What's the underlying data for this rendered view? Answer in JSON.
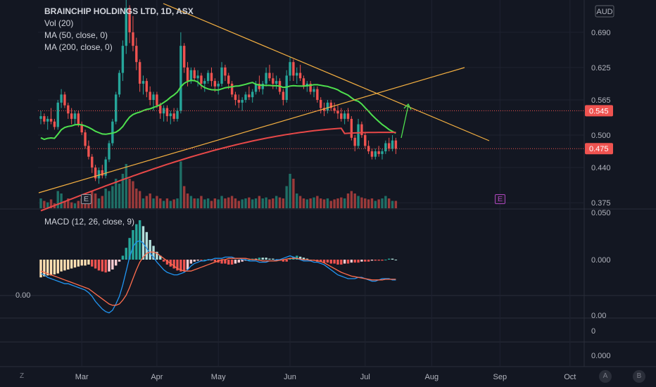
{
  "header": {
    "symbol_line": "BRAINCHIP HOLDINGS LTD, 1D, ASX",
    "indicators": [
      "Vol (20)",
      "MA (50, close, 0)",
      "MA (200, close, 0)"
    ],
    "currency": "AUD"
  },
  "macd_pane": {
    "label": "MACD (12, 26, close, 9)"
  },
  "left_marker": "0.00",
  "corner_buttons": {
    "left": "Z",
    "a": "A",
    "b": "B"
  },
  "earnings_markers": [
    "E",
    "E"
  ],
  "colors": {
    "background": "#131722",
    "up": "#26a69a",
    "down": "#ef5350",
    "ma50": "#4ee04e",
    "ma200": "#e84848",
    "trend": "#f5b041",
    "macd": "#2196f3",
    "signal": "#ff6d4d",
    "earnings_purple": "#ab47bc"
  },
  "chart_data": {
    "type": "candlestick",
    "title": "BRAINCHIP HOLDINGS LTD, 1D, ASX",
    "price_axis": {
      "ticks": [
        "0.690",
        "0.625",
        "0.565",
        "0.500",
        "0.440",
        "0.375"
      ],
      "ylim": [
        0.34,
        0.76
      ],
      "current_price": "0.545",
      "last_close": "0.475"
    },
    "macd_axis": {
      "ticks": [
        "0.050",
        "0.000",
        "0.00",
        "0",
        "0.000"
      ]
    },
    "x_ticks": [
      "Mar",
      "Apr",
      "May",
      "Jun",
      "Jul",
      "Aug",
      "Sep",
      "Oct"
    ],
    "candles": [
      {
        "date": "Feb-13",
        "o": 0.53,
        "h": 0.545,
        "l": 0.52,
        "c": 0.535
      },
      {
        "date": "Feb-14",
        "o": 0.535,
        "h": 0.54,
        "l": 0.52,
        "c": 0.525
      },
      {
        "date": "Feb-15",
        "o": 0.525,
        "h": 0.535,
        "l": 0.51,
        "c": 0.53
      },
      {
        "date": "Feb-16",
        "o": 0.53,
        "h": 0.55,
        "l": 0.52,
        "c": 0.525
      },
      {
        "date": "Feb-17",
        "o": 0.525,
        "h": 0.53,
        "l": 0.51,
        "c": 0.515
      },
      {
        "date": "Feb-20",
        "o": 0.515,
        "h": 0.565,
        "l": 0.51,
        "c": 0.56
      },
      {
        "date": "Feb-21",
        "o": 0.56,
        "h": 0.585,
        "l": 0.55,
        "c": 0.575
      },
      {
        "date": "Feb-22",
        "o": 0.575,
        "h": 0.58,
        "l": 0.55,
        "c": 0.555
      },
      {
        "date": "Feb-23",
        "o": 0.555,
        "h": 0.56,
        "l": 0.53,
        "c": 0.54
      },
      {
        "date": "Feb-24",
        "o": 0.54,
        "h": 0.55,
        "l": 0.52,
        "c": 0.53
      },
      {
        "date": "Feb-27",
        "o": 0.53,
        "h": 0.545,
        "l": 0.52,
        "c": 0.54
      },
      {
        "date": "Feb-28",
        "o": 0.54,
        "h": 0.545,
        "l": 0.515,
        "c": 0.52
      },
      {
        "date": "Mar-01",
        "o": 0.52,
        "h": 0.525,
        "l": 0.5,
        "c": 0.505
      },
      {
        "date": "Mar-02",
        "o": 0.505,
        "h": 0.51,
        "l": 0.475,
        "c": 0.48
      },
      {
        "date": "Mar-03",
        "o": 0.48,
        "h": 0.49,
        "l": 0.455,
        "c": 0.46
      },
      {
        "date": "Mar-06",
        "o": 0.46,
        "h": 0.465,
        "l": 0.43,
        "c": 0.44
      },
      {
        "date": "Mar-07",
        "o": 0.44,
        "h": 0.445,
        "l": 0.415,
        "c": 0.42
      },
      {
        "date": "Mar-08",
        "o": 0.42,
        "h": 0.44,
        "l": 0.41,
        "c": 0.435
      },
      {
        "date": "Mar-09",
        "o": 0.435,
        "h": 0.445,
        "l": 0.42,
        "c": 0.425
      },
      {
        "date": "Mar-10",
        "o": 0.425,
        "h": 0.46,
        "l": 0.42,
        "c": 0.455
      },
      {
        "date": "Mar-13",
        "o": 0.455,
        "h": 0.49,
        "l": 0.45,
        "c": 0.485
      },
      {
        "date": "Mar-14",
        "o": 0.485,
        "h": 0.53,
        "l": 0.48,
        "c": 0.525
      },
      {
        "date": "Mar-15",
        "o": 0.525,
        "h": 0.58,
        "l": 0.52,
        "c": 0.575
      },
      {
        "date": "Mar-16",
        "o": 0.575,
        "h": 0.62,
        "l": 0.57,
        "c": 0.615
      },
      {
        "date": "Mar-17",
        "o": 0.615,
        "h": 0.675,
        "l": 0.6,
        "c": 0.665
      },
      {
        "date": "Mar-20",
        "o": 0.665,
        "h": 0.76,
        "l": 0.65,
        "c": 0.735
      },
      {
        "date": "Mar-21",
        "o": 0.735,
        "h": 0.74,
        "l": 0.67,
        "c": 0.69
      },
      {
        "date": "Mar-22",
        "o": 0.69,
        "h": 0.72,
        "l": 0.655,
        "c": 0.665
      },
      {
        "date": "Mar-23",
        "o": 0.665,
        "h": 0.68,
        "l": 0.62,
        "c": 0.635
      },
      {
        "date": "Mar-24",
        "o": 0.635,
        "h": 0.64,
        "l": 0.58,
        "c": 0.595
      },
      {
        "date": "Mar-27",
        "o": 0.595,
        "h": 0.61,
        "l": 0.575,
        "c": 0.6
      },
      {
        "date": "Mar-28",
        "o": 0.6,
        "h": 0.605,
        "l": 0.57,
        "c": 0.58
      },
      {
        "date": "Mar-29",
        "o": 0.58,
        "h": 0.59,
        "l": 0.555,
        "c": 0.565
      },
      {
        "date": "Mar-30",
        "o": 0.565,
        "h": 0.58,
        "l": 0.545,
        "c": 0.575
      },
      {
        "date": "Mar-31",
        "o": 0.575,
        "h": 0.58,
        "l": 0.55,
        "c": 0.555
      },
      {
        "date": "Apr-03",
        "o": 0.555,
        "h": 0.56,
        "l": 0.53,
        "c": 0.54
      },
      {
        "date": "Apr-04",
        "o": 0.54,
        "h": 0.555,
        "l": 0.525,
        "c": 0.55
      },
      {
        "date": "Apr-05",
        "o": 0.55,
        "h": 0.555,
        "l": 0.525,
        "c": 0.535
      },
      {
        "date": "Apr-06",
        "o": 0.535,
        "h": 0.545,
        "l": 0.52,
        "c": 0.54
      },
      {
        "date": "Apr-11",
        "o": 0.54,
        "h": 0.55,
        "l": 0.525,
        "c": 0.53
      },
      {
        "date": "Apr-12",
        "o": 0.53,
        "h": 0.55,
        "l": 0.525,
        "c": 0.545
      },
      {
        "date": "Apr-13",
        "o": 0.545,
        "h": 0.69,
        "l": 0.54,
        "c": 0.665
      },
      {
        "date": "Apr-14",
        "o": 0.665,
        "h": 0.67,
        "l": 0.615,
        "c": 0.625
      },
      {
        "date": "Apr-17",
        "o": 0.625,
        "h": 0.635,
        "l": 0.59,
        "c": 0.6
      },
      {
        "date": "Apr-18",
        "o": 0.6,
        "h": 0.625,
        "l": 0.595,
        "c": 0.62
      },
      {
        "date": "Apr-19",
        "o": 0.62,
        "h": 0.625,
        "l": 0.6,
        "c": 0.605
      },
      {
        "date": "Apr-20",
        "o": 0.605,
        "h": 0.62,
        "l": 0.59,
        "c": 0.61
      },
      {
        "date": "Apr-21",
        "o": 0.61,
        "h": 0.615,
        "l": 0.585,
        "c": 0.595
      },
      {
        "date": "Apr-24",
        "o": 0.595,
        "h": 0.605,
        "l": 0.58,
        "c": 0.6
      },
      {
        "date": "Apr-26",
        "o": 0.6,
        "h": 0.62,
        "l": 0.595,
        "c": 0.615
      },
      {
        "date": "Apr-27",
        "o": 0.615,
        "h": 0.625,
        "l": 0.59,
        "c": 0.6
      },
      {
        "date": "Apr-28",
        "o": 0.6,
        "h": 0.605,
        "l": 0.58,
        "c": 0.59
      },
      {
        "date": "May-01",
        "o": 0.59,
        "h": 0.6,
        "l": 0.575,
        "c": 0.595
      },
      {
        "date": "May-02",
        "o": 0.595,
        "h": 0.635,
        "l": 0.59,
        "c": 0.625
      },
      {
        "date": "May-03",
        "o": 0.625,
        "h": 0.63,
        "l": 0.6,
        "c": 0.61
      },
      {
        "date": "May-04",
        "o": 0.61,
        "h": 0.615,
        "l": 0.585,
        "c": 0.595
      },
      {
        "date": "May-05",
        "o": 0.595,
        "h": 0.6,
        "l": 0.57,
        "c": 0.575
      },
      {
        "date": "May-08",
        "o": 0.575,
        "h": 0.58,
        "l": 0.555,
        "c": 0.565
      },
      {
        "date": "May-09",
        "o": 0.565,
        "h": 0.575,
        "l": 0.55,
        "c": 0.56
      },
      {
        "date": "May-10",
        "o": 0.56,
        "h": 0.57,
        "l": 0.545,
        "c": 0.565
      },
      {
        "date": "May-11",
        "o": 0.565,
        "h": 0.58,
        "l": 0.56,
        "c": 0.575
      },
      {
        "date": "May-12",
        "o": 0.575,
        "h": 0.59,
        "l": 0.565,
        "c": 0.57
      },
      {
        "date": "May-15",
        "o": 0.57,
        "h": 0.585,
        "l": 0.56,
        "c": 0.58
      },
      {
        "date": "May-16",
        "o": 0.58,
        "h": 0.6,
        "l": 0.575,
        "c": 0.595
      },
      {
        "date": "May-17",
        "o": 0.595,
        "h": 0.61,
        "l": 0.58,
        "c": 0.585
      },
      {
        "date": "May-18",
        "o": 0.585,
        "h": 0.6,
        "l": 0.575,
        "c": 0.595
      },
      {
        "date": "May-19",
        "o": 0.595,
        "h": 0.625,
        "l": 0.59,
        "c": 0.615
      },
      {
        "date": "May-22",
        "o": 0.615,
        "h": 0.63,
        "l": 0.6,
        "c": 0.605
      },
      {
        "date": "May-23",
        "o": 0.605,
        "h": 0.615,
        "l": 0.585,
        "c": 0.595
      },
      {
        "date": "May-24",
        "o": 0.595,
        "h": 0.61,
        "l": 0.585,
        "c": 0.6
      },
      {
        "date": "May-25",
        "o": 0.6,
        "h": 0.605,
        "l": 0.575,
        "c": 0.58
      },
      {
        "date": "May-26",
        "o": 0.58,
        "h": 0.585,
        "l": 0.555,
        "c": 0.565
      },
      {
        "date": "May-29",
        "o": 0.565,
        "h": 0.62,
        "l": 0.56,
        "c": 0.61
      },
      {
        "date": "May-30",
        "o": 0.61,
        "h": 0.645,
        "l": 0.6,
        "c": 0.635
      },
      {
        "date": "May-31",
        "o": 0.635,
        "h": 0.64,
        "l": 0.6,
        "c": 0.61
      },
      {
        "date": "Jun-01",
        "o": 0.61,
        "h": 0.625,
        "l": 0.595,
        "c": 0.615
      },
      {
        "date": "Jun-02",
        "o": 0.615,
        "h": 0.63,
        "l": 0.6,
        "c": 0.605
      },
      {
        "date": "Jun-05",
        "o": 0.605,
        "h": 0.61,
        "l": 0.585,
        "c": 0.59
      },
      {
        "date": "Jun-06",
        "o": 0.59,
        "h": 0.6,
        "l": 0.58,
        "c": 0.595
      },
      {
        "date": "Jun-07",
        "o": 0.595,
        "h": 0.6,
        "l": 0.575,
        "c": 0.58
      },
      {
        "date": "Jun-08",
        "o": 0.58,
        "h": 0.59,
        "l": 0.57,
        "c": 0.585
      },
      {
        "date": "Jun-09",
        "o": 0.585,
        "h": 0.59,
        "l": 0.56,
        "c": 0.565
      },
      {
        "date": "Jun-13",
        "o": 0.565,
        "h": 0.57,
        "l": 0.54,
        "c": 0.55
      },
      {
        "date": "Jun-14",
        "o": 0.55,
        "h": 0.56,
        "l": 0.535,
        "c": 0.545
      },
      {
        "date": "Jun-15",
        "o": 0.545,
        "h": 0.565,
        "l": 0.54,
        "c": 0.56
      },
      {
        "date": "Jun-16",
        "o": 0.56,
        "h": 0.565,
        "l": 0.545,
        "c": 0.55
      },
      {
        "date": "Jun-19",
        "o": 0.55,
        "h": 0.56,
        "l": 0.54,
        "c": 0.545
      },
      {
        "date": "Jun-20",
        "o": 0.545,
        "h": 0.555,
        "l": 0.53,
        "c": 0.54
      },
      {
        "date": "Jun-21",
        "o": 0.54,
        "h": 0.55,
        "l": 0.525,
        "c": 0.53
      },
      {
        "date": "Jun-22",
        "o": 0.53,
        "h": 0.545,
        "l": 0.52,
        "c": 0.54
      },
      {
        "date": "Jun-23",
        "o": 0.54,
        "h": 0.55,
        "l": 0.525,
        "c": 0.53
      },
      {
        "date": "Jun-26",
        "o": 0.53,
        "h": 0.535,
        "l": 0.49,
        "c": 0.495
      },
      {
        "date": "Jun-27",
        "o": 0.495,
        "h": 0.5,
        "l": 0.47,
        "c": 0.48
      },
      {
        "date": "Jun-28",
        "o": 0.48,
        "h": 0.53,
        "l": 0.475,
        "c": 0.52
      },
      {
        "date": "Jun-29",
        "o": 0.52,
        "h": 0.525,
        "l": 0.495,
        "c": 0.5
      },
      {
        "date": "Jun-30",
        "o": 0.5,
        "h": 0.505,
        "l": 0.475,
        "c": 0.48
      },
      {
        "date": "Jul-03",
        "o": 0.48,
        "h": 0.49,
        "l": 0.465,
        "c": 0.47
      },
      {
        "date": "Jul-04",
        "o": 0.47,
        "h": 0.475,
        "l": 0.455,
        "c": 0.46
      },
      {
        "date": "Jul-05",
        "o": 0.46,
        "h": 0.475,
        "l": 0.455,
        "c": 0.47
      },
      {
        "date": "Jul-06",
        "o": 0.47,
        "h": 0.48,
        "l": 0.46,
        "c": 0.465
      },
      {
        "date": "Jul-07",
        "o": 0.465,
        "h": 0.475,
        "l": 0.455,
        "c": 0.47
      },
      {
        "date": "Jul-10",
        "o": 0.47,
        "h": 0.49,
        "l": 0.465,
        "c": 0.485
      },
      {
        "date": "Jul-11",
        "o": 0.485,
        "h": 0.495,
        "l": 0.47,
        "c": 0.475
      },
      {
        "date": "Jul-12",
        "o": 0.475,
        "h": 0.5,
        "l": 0.47,
        "c": 0.49
      },
      {
        "date": "Jul-13",
        "o": 0.49,
        "h": 0.495,
        "l": 0.465,
        "c": 0.475
      }
    ],
    "grid": true
  }
}
